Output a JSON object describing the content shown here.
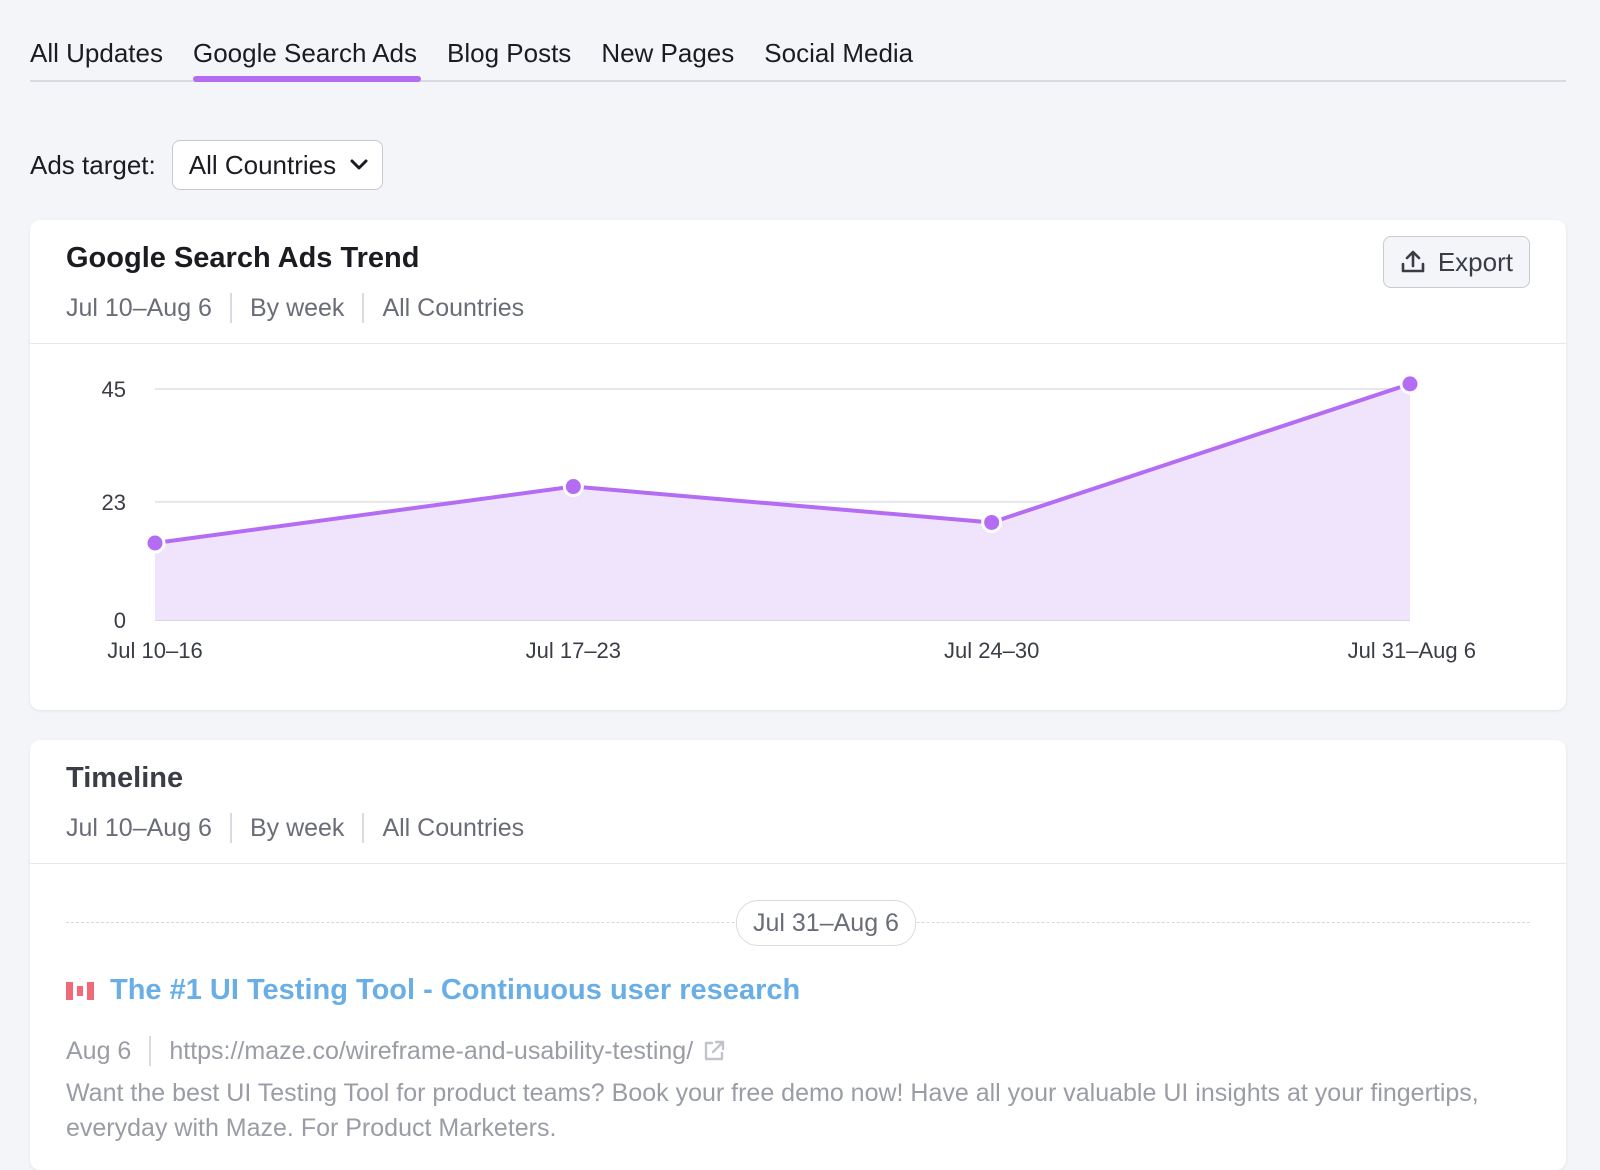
{
  "tabs": [
    {
      "label": "All Updates"
    },
    {
      "label": "Google Search Ads"
    },
    {
      "label": "Blog Posts"
    },
    {
      "label": "New Pages"
    },
    {
      "label": "Social Media"
    }
  ],
  "ads_target": {
    "label": "Ads target:",
    "value": "All Countries"
  },
  "trend_card": {
    "title": "Google Search Ads Trend",
    "date_range": "Jul 10–Aug 6",
    "granularity": "By week",
    "country": "All Countries",
    "export_label": "Export"
  },
  "chart_data": {
    "type": "area",
    "categories": [
      "Jul 10–16",
      "Jul 17–23",
      "Jul 24–30",
      "Jul 31–Aug 6"
    ],
    "values": [
      15,
      26,
      19,
      46
    ],
    "yticks": [
      0,
      23,
      45
    ],
    "ylim": [
      0,
      45
    ],
    "color": "#b46cf3",
    "fill": "#f0e4fc",
    "grid": true
  },
  "timeline_card": {
    "title": "Timeline",
    "date_range": "Jul 10–Aug 6",
    "granularity": "By week",
    "country": "All Countries",
    "week_label": "Jul 31–Aug 6",
    "ad": {
      "title": "The #1 UI Testing Tool - Continuous user research",
      "date": "Aug 6",
      "url": "https://maze.co/wireframe-and-usability-testing/",
      "description": "Want the best UI Testing Tool for product teams? Book your free demo now! Have all your valuable UI insights at your fingertips, everyday with Maze. For Product Marketers."
    }
  }
}
